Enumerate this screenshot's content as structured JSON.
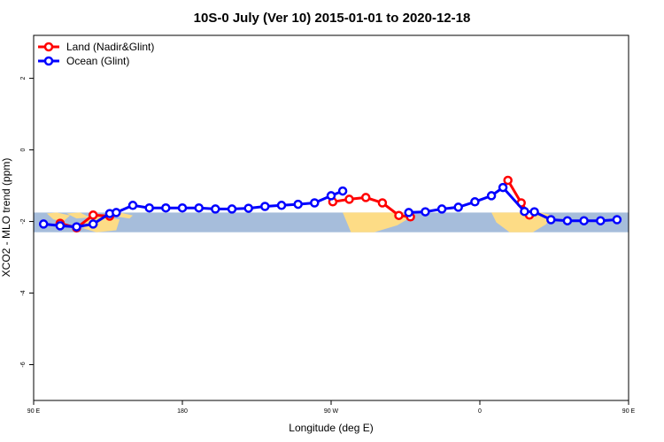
{
  "chart_data": {
    "type": "line",
    "title": "10S-0 July (Ver 10)   2015-01-01 to 2020-12-18",
    "xlabel": "Longitude (deg E)",
    "ylabel": "XCO2 - MLO trend (ppm)",
    "xlim": [
      90,
      450
    ],
    "ylim": [
      -7.0,
      3.2
    ],
    "x_ticks": [
      {
        "value": 90,
        "label": "90 E"
      },
      {
        "value": 180,
        "label": "180"
      },
      {
        "value": 270,
        "label": "90 W"
      },
      {
        "value": 360,
        "label": "0"
      },
      {
        "value": 450,
        "label": "90 E"
      },
      {
        "value": 540,
        "label": "180"
      }
    ],
    "y_ticks": [
      {
        "value": 2,
        "label": "2"
      },
      {
        "value": 0,
        "label": "0"
      },
      {
        "value": -2,
        "label": "-2"
      },
      {
        "value": -4,
        "label": "-4"
      },
      {
        "value": -6,
        "label": "-6"
      }
    ],
    "legend_position": "top-left",
    "series": [
      {
        "name": "Land (Nadir&Glint)",
        "color": "#ff0000",
        "points": [
          [
            106,
            -2.05
          ],
          [
            116,
            -2.18
          ],
          [
            126,
            -1.82
          ],
          [
            136,
            -1.85
          ],
          [
            271,
            -1.45
          ],
          [
            281,
            -1.38
          ],
          [
            291,
            -1.33
          ],
          [
            301,
            -1.48
          ],
          [
            311,
            -1.83
          ],
          [
            318,
            -1.87
          ],
          [
            377,
            -0.85
          ],
          [
            385,
            -1.48
          ],
          [
            390,
            -1.82
          ],
          [
            465,
            -2.05
          ],
          [
            475,
            -2.18
          ],
          [
            486,
            -1.82
          ],
          [
            496,
            -1.85
          ]
        ]
      },
      {
        "name": "Ocean (Glint)",
        "color": "#0000ff",
        "points": [
          [
            96,
            -2.07
          ],
          [
            106,
            -2.12
          ],
          [
            116,
            -2.15
          ],
          [
            126,
            -2.07
          ],
          [
            136,
            -1.78
          ],
          [
            140,
            -1.75
          ],
          [
            150,
            -1.55
          ],
          [
            160,
            -1.62
          ],
          [
            170,
            -1.62
          ],
          [
            180,
            -1.62
          ],
          [
            190,
            -1.62
          ],
          [
            200,
            -1.65
          ],
          [
            210,
            -1.65
          ],
          [
            220,
            -1.63
          ],
          [
            230,
            -1.58
          ],
          [
            240,
            -1.55
          ],
          [
            250,
            -1.52
          ],
          [
            260,
            -1.48
          ],
          [
            270,
            -1.28
          ],
          [
            277,
            -1.15
          ],
          [
            317,
            -1.75
          ],
          [
            327,
            -1.73
          ],
          [
            337,
            -1.65
          ],
          [
            347,
            -1.6
          ],
          [
            357,
            -1.45
          ],
          [
            367,
            -1.28
          ],
          [
            374,
            -1.05
          ],
          [
            387,
            -1.72
          ],
          [
            393,
            -1.73
          ],
          [
            403,
            -1.95
          ],
          [
            413,
            -1.98
          ],
          [
            423,
            -1.98
          ],
          [
            433,
            -1.98
          ],
          [
            443,
            -1.95
          ],
          [
            453,
            -2.05
          ],
          [
            460,
            -2.1
          ],
          [
            470,
            -2.15
          ],
          [
            480,
            -2.07
          ],
          [
            490,
            -1.78
          ],
          [
            500,
            -1.75
          ]
        ]
      }
    ],
    "map_band": {
      "ymin": -2.3,
      "ymax": -1.75
    }
  }
}
